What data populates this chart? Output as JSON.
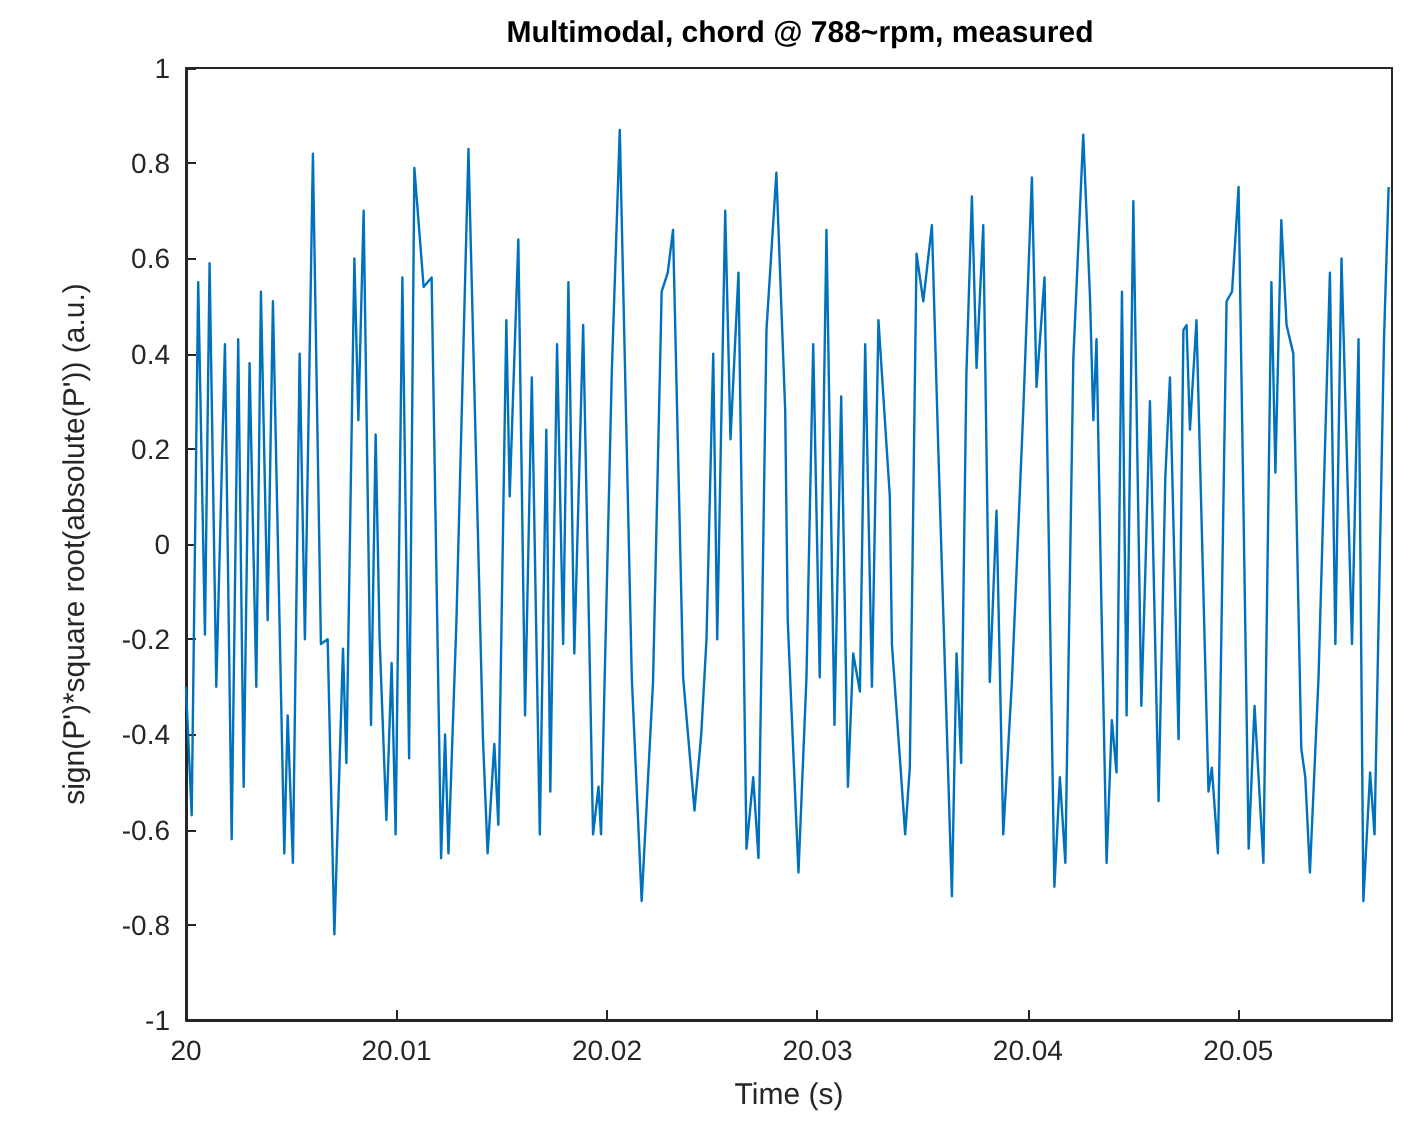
{
  "chart_data": {
    "type": "line",
    "title": "Multimodal, chord @ 788~rpm, measured",
    "xlabel": "Time (s)",
    "ylabel": "sign(P')*square root(absolute(P')) (a.u.)",
    "xlim": [
      20,
      20.0573
    ],
    "xticks": [
      20,
      20.01,
      20.02,
      20.03,
      20.04,
      20.05
    ],
    "ylim": [
      -1,
      1
    ],
    "yticks": [
      -1,
      -0.8,
      -0.6,
      -0.4,
      -0.2,
      0,
      0.2,
      0.4,
      0.6,
      0.8,
      1
    ],
    "grid": false,
    "marker": "none",
    "line_style": "solid",
    "series": [
      {
        "color": "#0072bd",
        "x": [
          20,
          20.00027,
          20.00058,
          20.0009,
          20.00112,
          20.00144,
          20.00185,
          20.00217,
          20.00248,
          20.00274,
          20.00302,
          20.00334,
          20.00356,
          20.00388,
          20.00413,
          20.00467,
          20.00483,
          20.00508,
          20.0054,
          20.00565,
          20.00603,
          20.00641,
          20.00673,
          20.00705,
          20.00746,
          20.00762,
          20.008,
          20.00819,
          20.00844,
          20.00879,
          20.00901,
          20.0092,
          20.00952,
          20.00977,
          20.00996,
          20.01028,
          20.0106,
          20.01085,
          20.01129,
          20.01167,
          20.01212,
          20.01231,
          20.01247,
          20.01285,
          20.01342,
          20.01411,
          20.01433,
          20.01465,
          20.01484,
          20.01522,
          20.01538,
          20.01579,
          20.01611,
          20.01643,
          20.01681,
          20.01712,
          20.01731,
          20.01763,
          20.01792,
          20.01817,
          20.01845,
          20.01887,
          20.01934,
          20.0196,
          20.01972,
          20.02023,
          20.02061,
          20.02118,
          20.02165,
          20.02219,
          20.0226,
          20.02289,
          20.02314,
          20.02362,
          20.02416,
          20.02448,
          20.02473,
          20.02505,
          20.02524,
          20.02562,
          20.02587,
          20.02625,
          20.02663,
          20.02695,
          20.0272,
          20.02758,
          20.02805,
          20.02847,
          20.02859,
          20.02878,
          20.0291,
          20.02948,
          20.0298,
          20.03011,
          20.03043,
          20.03081,
          20.03113,
          20.03145,
          20.0317,
          20.03202,
          20.03227,
          20.03259,
          20.0329,
          20.03344,
          20.03354,
          20.03417,
          20.03439,
          20.03471,
          20.03503,
          20.03544,
          20.03575,
          20.03639,
          20.03661,
          20.03683,
          20.03708,
          20.03734,
          20.03756,
          20.03788,
          20.03819,
          20.03851,
          20.03883,
          20.03924,
          20.03978,
          20.04019,
          20.04041,
          20.04079,
          20.04126,
          20.04152,
          20.04178,
          20.04216,
          20.04263,
          20.04295,
          20.04311,
          20.04326,
          20.04349,
          20.04374,
          20.04399,
          20.04421,
          20.04447,
          20.04469,
          20.04501,
          20.04539,
          20.04558,
          20.0458,
          20.04621,
          20.04653,
          20.04675,
          20.04716,
          20.04739,
          20.04754,
          20.0477,
          20.04801,
          20.04858,
          20.04874,
          20.04903,
          20.04944,
          20.0497,
          20.05001,
          20.05049,
          20.05077,
          20.05119,
          20.05157,
          20.05176,
          20.05204,
          20.05229,
          20.05261,
          20.05299,
          20.05318,
          20.0534,
          20.05381,
          20.05435,
          20.05461,
          20.0549,
          20.0554,
          20.05571,
          20.05594,
          20.05626,
          20.05647,
          20.05692,
          20.05714
        ],
        "values": [
          -0.3,
          -0.57,
          0.55,
          -0.19,
          0.59,
          -0.3,
          0.42,
          -0.62,
          0.43,
          -0.51,
          0.38,
          -0.3,
          0.53,
          -0.16,
          0.51,
          -0.65,
          -0.36,
          -0.67,
          0.4,
          -0.2,
          0.82,
          -0.21,
          -0.2,
          -0.82,
          -0.22,
          -0.46,
          0.6,
          0.26,
          0.7,
          -0.38,
          0.23,
          -0.2,
          -0.58,
          -0.25,
          -0.61,
          0.56,
          -0.45,
          0.79,
          0.54,
          0.56,
          -0.66,
          -0.4,
          -0.65,
          -0.16,
          0.83,
          -0.41,
          -0.65,
          -0.42,
          -0.59,
          0.47,
          0.1,
          0.64,
          -0.36,
          0.35,
          -0.61,
          0.24,
          -0.52,
          0.42,
          -0.21,
          0.55,
          -0.23,
          0.46,
          -0.61,
          -0.51,
          -0.61,
          0.36,
          0.87,
          -0.28,
          -0.75,
          -0.29,
          0.53,
          0.57,
          0.66,
          -0.28,
          -0.56,
          -0.4,
          -0.2,
          0.4,
          -0.2,
          0.7,
          0.22,
          0.57,
          -0.64,
          -0.49,
          -0.66,
          0.45,
          0.78,
          0.28,
          -0.16,
          -0.36,
          -0.69,
          -0.28,
          0.42,
          -0.28,
          0.66,
          -0.38,
          0.31,
          -0.51,
          -0.23,
          -0.31,
          0.42,
          -0.3,
          0.47,
          0.1,
          -0.21,
          -0.61,
          -0.47,
          0.61,
          0.51,
          0.67,
          0.19,
          -0.74,
          -0.23,
          -0.46,
          0.36,
          0.73,
          0.37,
          0.67,
          -0.29,
          0.07,
          -0.61,
          -0.29,
          0.28,
          0.77,
          0.33,
          0.56,
          -0.72,
          -0.49,
          -0.67,
          0.39,
          0.86,
          0.52,
          0.26,
          0.43,
          -0.12,
          -0.67,
          -0.37,
          -0.48,
          0.53,
          -0.36,
          0.72,
          -0.34,
          -0.06,
          0.3,
          -0.54,
          0.14,
          0.35,
          -0.41,
          0.45,
          0.46,
          0.24,
          0.47,
          -0.52,
          -0.47,
          -0.65,
          0.51,
          0.53,
          0.75,
          -0.64,
          -0.34,
          -0.67,
          0.55,
          0.15,
          0.68,
          0.46,
          0.4,
          -0.43,
          -0.49,
          -0.69,
          -0.28,
          0.57,
          -0.21,
          0.6,
          -0.21,
          0.43,
          -0.75,
          -0.48,
          -0.61,
          0.43,
          0.75
        ]
      }
    ]
  }
}
